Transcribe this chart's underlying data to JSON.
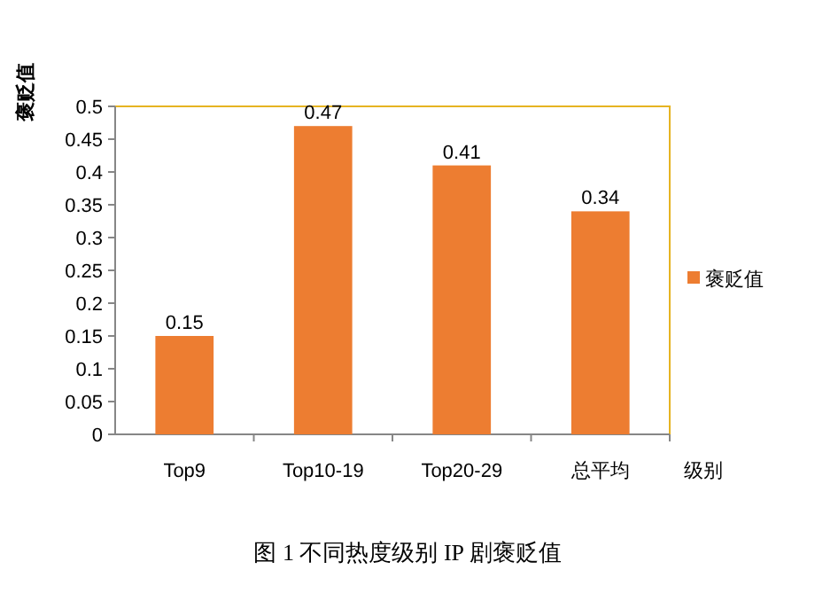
{
  "chart_data": {
    "type": "bar",
    "title": "图 1 不同热度级别 IP 剧褒贬值",
    "xlabel": "级别",
    "ylabel": "褒贬值",
    "categories": [
      "Top9",
      "Top10-19",
      "Top20-29",
      "总平均"
    ],
    "series": [
      {
        "name": "褒贬值",
        "color": "#ed7d31",
        "values": [
          0.15,
          0.47,
          0.41,
          0.34
        ]
      }
    ],
    "ylim": [
      0,
      0.5
    ],
    "yticks": [
      0,
      0.05,
      0.1,
      0.15,
      0.2,
      0.25,
      0.3,
      0.35,
      0.4,
      0.45,
      0.5
    ],
    "data_labels": true,
    "legend": "right",
    "grid": false
  }
}
